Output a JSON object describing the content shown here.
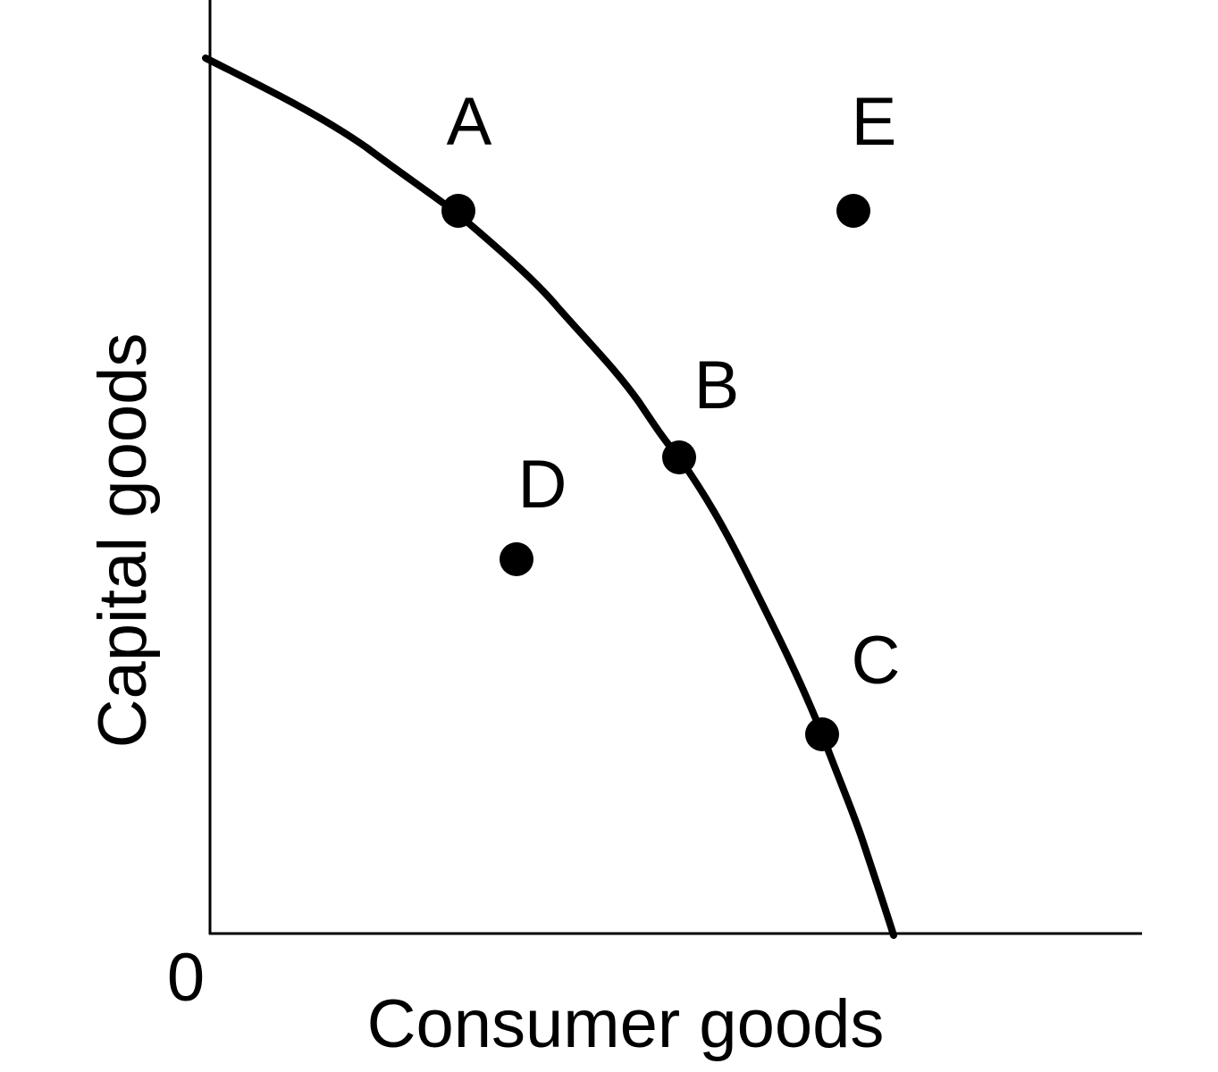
{
  "diagram": {
    "x_axis_label": "Consumer goods",
    "y_axis_label": "Capital goods",
    "origin_label": "0",
    "curve": "production possibilities frontier",
    "points": [
      {
        "id": "A",
        "label": "A",
        "position": "on curve"
      },
      {
        "id": "B",
        "label": "B",
        "position": "on curve"
      },
      {
        "id": "C",
        "label": "C",
        "position": "on curve"
      },
      {
        "id": "D",
        "label": "D",
        "position": "inside curve"
      },
      {
        "id": "E",
        "label": "E",
        "position": "outside curve"
      }
    ],
    "colors": {
      "ink": "#000000",
      "background": "#ffffff"
    }
  }
}
